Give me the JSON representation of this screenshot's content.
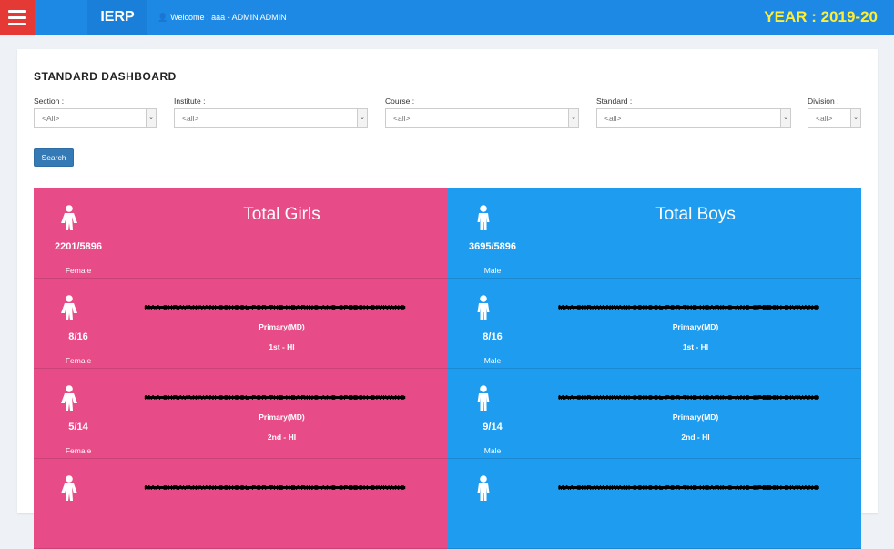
{
  "header": {
    "brand": "IERP",
    "welcome": "Welcome : aaa - ADMIN ADMIN",
    "year": "YEAR : 2019-20"
  },
  "page": {
    "title": "STANDARD DASHBOARD"
  },
  "filters": {
    "section": {
      "label": "Section :",
      "value": "<All>"
    },
    "institute": {
      "label": "Institute :",
      "value": "<all>"
    },
    "course": {
      "label": "Course :",
      "value": "<all>"
    },
    "standard": {
      "label": "Standard :",
      "value": "<all>"
    },
    "division": {
      "label": "Division :",
      "value": "<all>"
    }
  },
  "search_label": "Search",
  "girls": {
    "title": "Total Girls",
    "count": "2201/5896",
    "gender": "Female",
    "color": "#e84c88",
    "rows": [
      {
        "school": "MAA SHRAVANIVANI SCHOOL FOR THE HEARING AND SPEECH DIVIVANG",
        "level": "Primary(MD)",
        "standard": "1st - HI",
        "count": "8/16",
        "gender": "Female"
      },
      {
        "school": "MAA SHRAVANIVANI SCHOOL FOR THE HEARING AND SPEECH DIVIVANG",
        "level": "Primary(MD)",
        "standard": "2nd - HI",
        "count": "5/14",
        "gender": "Female"
      },
      {
        "school": "MAA SHRAVANIVANI SCHOOL FOR THE HEARING AND SPEECH DIVIVANG",
        "level": "",
        "standard": "",
        "count": "",
        "gender": ""
      }
    ]
  },
  "boys": {
    "title": "Total Boys",
    "count": "3695/5896",
    "gender": "Male",
    "color": "#1e9cef",
    "rows": [
      {
        "school": "MAA SHRAVANIVANI SCHOOL FOR THE HEARING AND SPEECH DIVIVANG",
        "level": "Primary(MD)",
        "standard": "1st - HI",
        "count": "8/16",
        "gender": "Male"
      },
      {
        "school": "MAA SHRAVANIVANI SCHOOL FOR THE HEARING AND SPEECH DIVIVANG",
        "level": "Primary(MD)",
        "standard": "2nd - HI",
        "count": "9/14",
        "gender": "Male"
      },
      {
        "school": "MAA SHRAVANIVANI SCHOOL FOR THE HEARING AND SPEECH DIVIVANG",
        "level": "",
        "standard": "",
        "count": "",
        "gender": ""
      }
    ]
  }
}
